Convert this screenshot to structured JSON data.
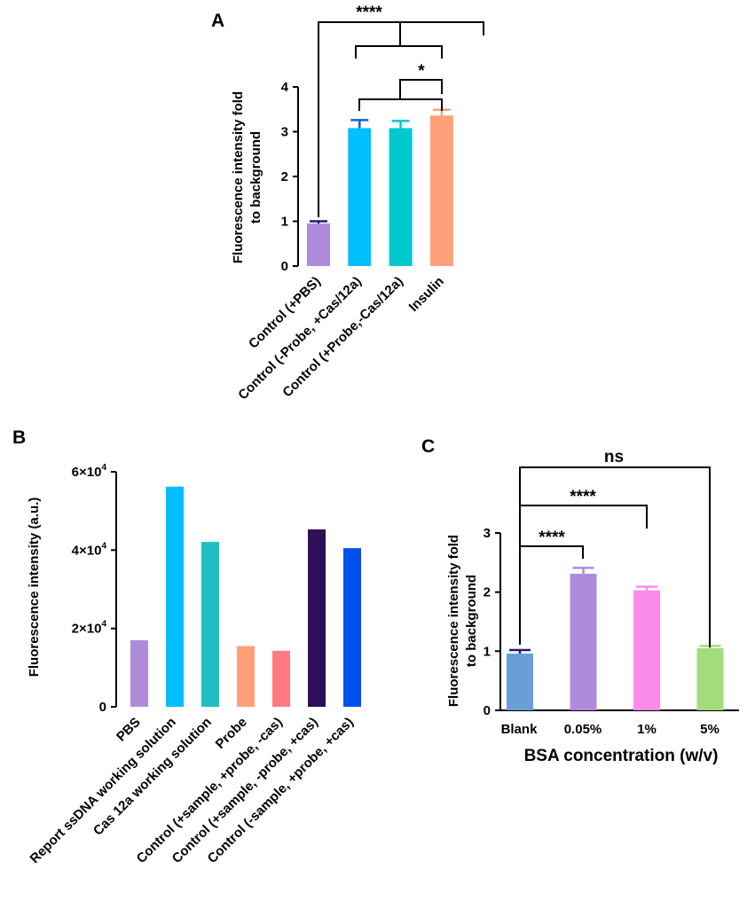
{
  "chart_data": [
    {
      "panel": "A",
      "type": "bar",
      "categories": [
        "Control (+PBS)",
        "Control (-Probe, +Cas/12a)",
        "Control (+Probe,-Cas/12a)",
        "Insulin"
      ],
      "values": [
        0.95,
        3.08,
        3.08,
        3.36
      ],
      "errors": [
        0.05,
        0.18,
        0.16,
        0.13
      ],
      "colors": [
        "#ae8cd9",
        "#00bfff",
        "#00c8cf",
        "#ffa07a"
      ],
      "ylabel": "Fluorescence intensity fold to background",
      "ylabel_lines": [
        "Fluorescence intensity fold",
        "to background"
      ],
      "ylim": [
        0,
        4
      ],
      "yticks": [
        "0",
        "1",
        "2",
        "3",
        "4"
      ],
      "significance": [
        {
          "label": "****",
          "groups": "Control (+PBS) vs others"
        },
        {
          "label": "*",
          "groups": "Insulin vs controls"
        }
      ]
    },
    {
      "panel": "B",
      "type": "bar",
      "categories": [
        "PBS",
        "Report ssDNA working solution",
        "Cas 12a working solution",
        "Probe",
        "Control (+sample, +probe, -cas)",
        "Control (+sample, -probe, +cas)",
        "Control (-sample, +probe, +cas)"
      ],
      "values": [
        17000,
        56200,
        42100,
        15500,
        14300,
        45300,
        40500
      ],
      "colors": [
        "#ae8cd9",
        "#00bfff",
        "#20c0c0",
        "#ffa07a",
        "#ff7b7f",
        "#2e0f58",
        "#0050ee"
      ],
      "ylabel": "Fluorescence intensity (a.u.)",
      "ylim": [
        0,
        60000
      ],
      "ytick_base": [
        "0",
        "2×10",
        "4×10",
        "6×10"
      ],
      "ytick_exp": "4"
    },
    {
      "panel": "C",
      "type": "bar",
      "categories": [
        "Blank",
        "0.05%",
        "1%",
        "5%"
      ],
      "values": [
        0.96,
        2.31,
        2.03,
        1.05
      ],
      "errors": [
        0.06,
        0.1,
        0.06,
        0.04
      ],
      "colors": [
        "#6a9ed6",
        "#ae8cd9",
        "#fb8be8",
        "#a4dc7c"
      ],
      "ylabel": "Fluorescence intensity fold to background",
      "ylabel_lines": [
        "Fluorescence intensity fold",
        "to background"
      ],
      "xlabel": "BSA concentration (w/v)",
      "ylim": [
        0,
        3
      ],
      "yticks": [
        "0",
        "1",
        "2",
        "3"
      ],
      "significance": [
        {
          "label": "ns",
          "groups": "Blank vs 5%"
        },
        {
          "label": "****",
          "groups": "Blank vs 1%"
        },
        {
          "label": "****",
          "groups": "Blank vs 0.05%"
        }
      ]
    }
  ]
}
